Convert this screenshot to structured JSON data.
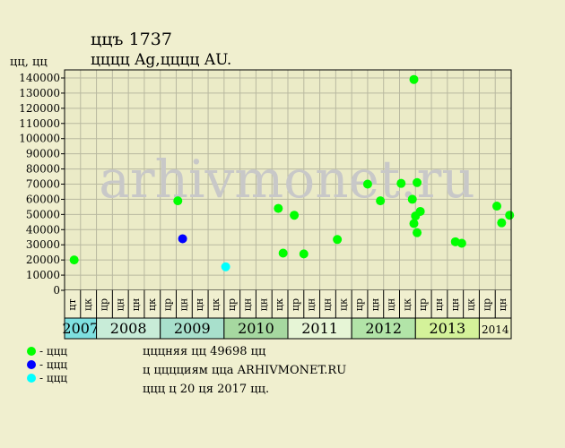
{
  "title": {
    "line1": "ццъ 1737",
    "line2": "цццц Ag,цццц AU."
  },
  "unit_label": "цц, цц",
  "watermark": "arhivmonet.ru",
  "legend": {
    "entries": [
      {
        "label": "- ццц",
        "color": "#00ff00"
      },
      {
        "label": "- ццц",
        "color": "#0000ff"
      },
      {
        "label": "- ццц",
        "color": "#00ffff"
      }
    ]
  },
  "notes": [
    "цццняя цц 49698 цц",
    "ц цццциям цца ARHIVMONET.RU",
    "ццц ц 20 ця 2017 цц."
  ],
  "chart_data": {
    "type": "scatter",
    "ylim": [
      0,
      145000
    ],
    "yticks": [
      0,
      10000,
      20000,
      30000,
      40000,
      50000,
      60000,
      70000,
      80000,
      90000,
      100000,
      110000,
      120000,
      130000,
      140000
    ],
    "ytick_labels": [
      "0",
      "10000",
      "20000",
      "30000",
      "40000",
      "50000",
      "60000",
      "70000",
      "80000",
      "90000",
      "100000",
      "110000",
      "120000",
      "130000",
      "140000"
    ],
    "grid": true,
    "months": [
      {
        "label": "цт",
        "year": "2007"
      },
      {
        "label": "цк",
        "year": "2007"
      },
      {
        "label": "цр",
        "year": "2008"
      },
      {
        "label": "цн",
        "year": "2008"
      },
      {
        "label": "цн",
        "year": "2008"
      },
      {
        "label": "цк",
        "year": "2008"
      },
      {
        "label": "цр",
        "year": "2009"
      },
      {
        "label": "цн",
        "year": "2009"
      },
      {
        "label": "цн",
        "year": "2009"
      },
      {
        "label": "цк",
        "year": "2009"
      },
      {
        "label": "цр",
        "year": "2010"
      },
      {
        "label": "цн",
        "year": "2010"
      },
      {
        "label": "цн",
        "year": "2010"
      },
      {
        "label": "цк",
        "year": "2010"
      },
      {
        "label": "цр",
        "year": "2011"
      },
      {
        "label": "цн",
        "year": "2011"
      },
      {
        "label": "цн",
        "year": "2011"
      },
      {
        "label": "цк",
        "year": "2011"
      },
      {
        "label": "цр",
        "year": "2012"
      },
      {
        "label": "цн",
        "year": "2012"
      },
      {
        "label": "цн",
        "year": "2012"
      },
      {
        "label": "цк",
        "year": "2012"
      },
      {
        "label": "цр",
        "year": "2013"
      },
      {
        "label": "цн",
        "year": "2013"
      },
      {
        "label": "цн",
        "year": "2013"
      },
      {
        "label": "цк",
        "year": "2013"
      },
      {
        "label": "цр",
        "year": "2014"
      },
      {
        "label": "цн",
        "year": "2014"
      }
    ],
    "years": [
      {
        "label": "2007",
        "start": 0,
        "end": 2,
        "color": "#7ee0e0"
      },
      {
        "label": "2008",
        "start": 2,
        "end": 6,
        "color": "#c8ecd8"
      },
      {
        "label": "2009",
        "start": 6,
        "end": 10,
        "color": "#a8e0cc"
      },
      {
        "label": "2010",
        "start": 10,
        "end": 14,
        "color": "#a6d8a0"
      },
      {
        "label": "2011",
        "start": 14,
        "end": 18,
        "color": "#e6f5d6"
      },
      {
        "label": "2012",
        "start": 18,
        "end": 22,
        "color": "#b2e4a8"
      },
      {
        "label": "2013",
        "start": 22,
        "end": 26,
        "color": "#d4f29a"
      },
      {
        "label": "2014",
        "start": 26,
        "end": 28,
        "color": "#eef2c4"
      }
    ],
    "series": [
      {
        "color": "#00ff00",
        "points": [
          [
            0.1,
            20000
          ],
          [
            6.6,
            59000
          ],
          [
            12.9,
            54000
          ],
          [
            13.2,
            24500
          ],
          [
            13.9,
            49500
          ],
          [
            14.5,
            24000
          ],
          [
            16.6,
            33500
          ],
          [
            18.5,
            70000
          ],
          [
            19.3,
            59000
          ],
          [
            20.6,
            70500
          ],
          [
            21.3,
            60000
          ],
          [
            21.4,
            44000
          ],
          [
            21.4,
            139000
          ],
          [
            21.5,
            49000
          ],
          [
            21.6,
            38000
          ],
          [
            21.6,
            71000
          ],
          [
            21.8,
            52000
          ],
          [
            24.0,
            32000
          ],
          [
            24.4,
            31000
          ],
          [
            26.6,
            55500
          ],
          [
            26.9,
            44500
          ],
          [
            27.4,
            49500
          ]
        ]
      },
      {
        "color": "#0000ff",
        "points": [
          [
            6.9,
            34000
          ]
        ]
      },
      {
        "color": "#00ffff",
        "points": [
          [
            9.6,
            15500
          ]
        ]
      }
    ]
  }
}
